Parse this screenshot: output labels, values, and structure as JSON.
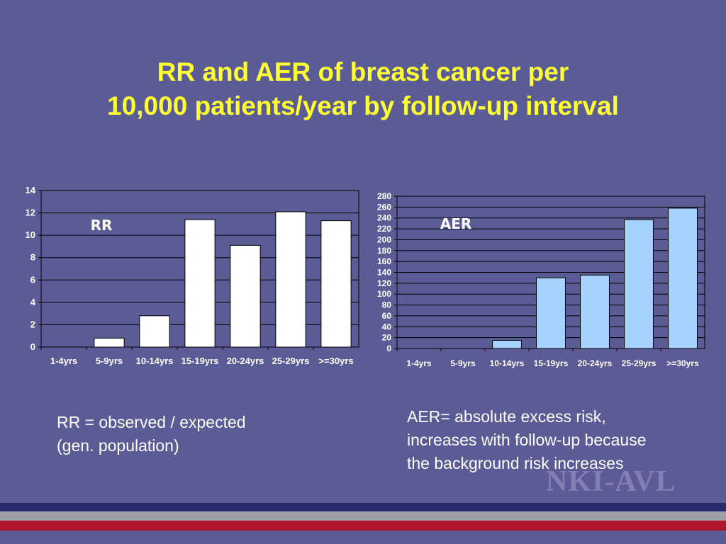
{
  "title": {
    "line1": "RR and AER of breast cancer per",
    "line2": "10,000 patients/year by follow-up interval"
  },
  "chart_data": [
    {
      "type": "bar",
      "series_label": "RR",
      "categories": [
        "1-4yrs",
        "5-9yrs",
        "10-14yrs",
        "15-19yrs",
        "20-24yrs",
        "25-29yrs",
        ">=30yrs"
      ],
      "values": [
        0,
        0.8,
        2.8,
        11.4,
        9.1,
        12.1,
        11.3
      ],
      "ylim": [
        0,
        14
      ],
      "yticks": [
        0,
        2,
        4,
        6,
        8,
        10,
        12,
        14
      ],
      "grid": true,
      "bar_color": "#ffffff"
    },
    {
      "type": "bar",
      "series_label": "AER",
      "categories": [
        "1-4yrs",
        "5-9yrs",
        "10-14yrs",
        "15-19yrs",
        "20-24yrs",
        "25-29yrs",
        ">=30yrs"
      ],
      "values": [
        0,
        0,
        15,
        130,
        135,
        237,
        258
      ],
      "ylim": [
        0,
        280
      ],
      "yticks": [
        0,
        20,
        40,
        60,
        80,
        100,
        120,
        140,
        160,
        180,
        200,
        220,
        240,
        260,
        280
      ],
      "grid": true,
      "bar_color": "#a6d2ff"
    }
  ],
  "notes": {
    "rr_line1": "RR = observed / expected",
    "rr_line2": "(gen. population)",
    "aer_line1": "AER= absolute excess risk,",
    "aer_line2": "increases with follow-up because",
    "aer_line3": "the background risk increases"
  },
  "logo": "NKI-AVL",
  "colors": {
    "background": "#5b5b96",
    "title": "#ffff33",
    "stripe_navy": "#2a2a6e",
    "stripe_gray": "#a0a0a8",
    "stripe_red": "#b0142c"
  }
}
